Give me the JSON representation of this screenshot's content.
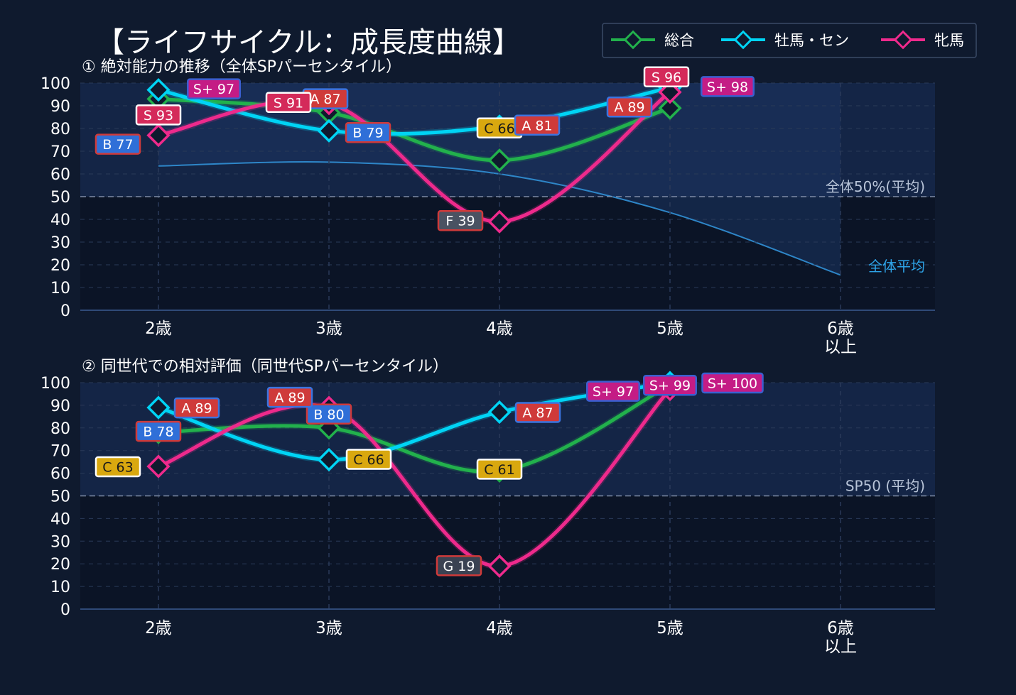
{
  "title": "【ライフサイクル：成長度曲線】",
  "legend": [
    {
      "name": "総合",
      "color": "#22b14c"
    },
    {
      "name": "牡馬・セン",
      "color": "#00d4f5"
    },
    {
      "name": "牝馬",
      "color": "#ee2a8c"
    }
  ],
  "chart_data": [
    {
      "type": "line",
      "title": "① 絶対能力の推移（全体SPパーセンタイル）",
      "categories": [
        "2歳",
        "3歳",
        "4歳",
        "5歳",
        "6歳\n以上"
      ],
      "ylim": [
        0,
        100
      ],
      "yticks": [
        0,
        10,
        20,
        30,
        40,
        50,
        60,
        70,
        80,
        90,
        100
      ],
      "grid": true,
      "reference_line": {
        "value": 50,
        "label": "全体50%(平均)"
      },
      "average_curve": {
        "name": "全体平均",
        "values": [
          63.5,
          65.2,
          60,
          43,
          15.5
        ]
      },
      "series": [
        {
          "name": "総合",
          "values": [
            93,
            87,
            66,
            89,
            null
          ],
          "labels": [
            "S 93",
            "A 87",
            "C 66",
            "A 89",
            ""
          ]
        },
        {
          "name": "牡馬・セン",
          "values": [
            97,
            79,
            81,
            98,
            null
          ],
          "labels": [
            "S+ 97",
            "B 79",
            "A 81",
            "S+ 98",
            ""
          ]
        },
        {
          "name": "牝馬",
          "values": [
            77,
            91,
            39,
            96,
            null
          ],
          "labels": [
            "B 77",
            "S 91",
            "F 39",
            "S 96",
            ""
          ]
        }
      ]
    },
    {
      "type": "line",
      "title": "② 同世代での相対評価（同世代SPパーセンタイル）",
      "categories": [
        "2歳",
        "3歳",
        "4歳",
        "5歳",
        "6歳\n以上"
      ],
      "ylim": [
        0,
        100
      ],
      "yticks": [
        0,
        10,
        20,
        30,
        40,
        50,
        60,
        70,
        80,
        90,
        100
      ],
      "grid": true,
      "reference_line": {
        "value": 50,
        "label": "SP50 (平均)"
      },
      "series": [
        {
          "name": "総合",
          "values": [
            78,
            80,
            61,
            99,
            null
          ],
          "labels": [
            "B 78",
            "B 80",
            "C 61",
            "S+ 99",
            ""
          ]
        },
        {
          "name": "牡馬・セン",
          "values": [
            89,
            66,
            87,
            100,
            null
          ],
          "labels": [
            "A 89",
            "C 66",
            "A 87",
            "S+ 100",
            ""
          ]
        },
        {
          "name": "牝馬",
          "values": [
            63,
            89,
            19,
            97,
            null
          ],
          "labels": [
            "C 63",
            "A 89",
            "G 19",
            "S+ 97",
            ""
          ]
        }
      ]
    }
  ]
}
